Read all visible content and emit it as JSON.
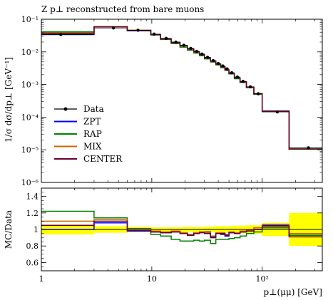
{
  "chart_data": [
    {
      "type": "line",
      "title": "Z p⊥ reconstructed from bare muons",
      "ylabel": "1/σ dσ/dp⊥ [GeV⁻¹]",
      "xscale": "log",
      "yscale": "log",
      "xlim": [
        1,
        350
      ],
      "ylim": [
        1e-06,
        0.1
      ],
      "x_ticks": [
        {
          "v": 1,
          "label": "1"
        },
        {
          "v": 10,
          "label": "10"
        },
        {
          "v": 100,
          "label": "10²"
        }
      ],
      "y_ticks": [
        {
          "v": 0.1,
          "label": "10⁻¹"
        },
        {
          "v": 0.01,
          "label": "10⁻²"
        },
        {
          "v": 0.001,
          "label": "10⁻³"
        },
        {
          "v": 0.0001,
          "label": "10⁻⁴"
        },
        {
          "v": 1e-05,
          "label": "10⁻⁵"
        },
        {
          "v": 1e-06,
          "label": "10⁻⁶"
        }
      ],
      "bin_edges": [
        1,
        3,
        6,
        9.8,
        12,
        15,
        18,
        21,
        24,
        27,
        30,
        34,
        38,
        42,
        46,
        50,
        56,
        63,
        72,
        84,
        100,
        175,
        350
      ],
      "legend_position": "left",
      "data": {
        "name": "Data",
        "color": "#000000",
        "x": [
          1.5,
          4.5,
          7.5,
          10.5,
          13.5,
          16.5,
          19.5,
          22.5,
          25.5,
          28.5,
          32,
          36,
          40,
          44,
          48,
          53,
          59.5,
          67,
          78,
          92,
          137,
          262
        ],
        "y": [
          0.034,
          0.054,
          0.046,
          0.035,
          0.026,
          0.02,
          0.016,
          0.0128,
          0.0104,
          0.0086,
          0.0068,
          0.0054,
          0.0044,
          0.0037,
          0.003,
          0.0023,
          0.0017,
          0.00125,
          0.00085,
          0.00052,
          0.000145,
          1.15e-05
        ]
      },
      "series": [
        {
          "name": "ZPT",
          "color": "#0000ff",
          "values": [
            0.034,
            0.058,
            0.044,
            0.034,
            0.025,
            0.0195,
            0.0155,
            0.0122,
            0.01,
            0.0083,
            0.0066,
            0.0052,
            0.0042,
            0.0035,
            0.0028,
            0.0022,
            0.0016,
            0.0012,
            0.00083,
            0.00052,
            0.000155,
            1.05e-05
          ]
        },
        {
          "name": "RAP",
          "color": "#008000",
          "values": [
            0.041,
            0.059,
            0.046,
            0.033,
            0.024,
            0.018,
            0.014,
            0.0112,
            0.0092,
            0.0076,
            0.0061,
            0.0049,
            0.004,
            0.0033,
            0.0027,
            0.0021,
            0.0015,
            0.00115,
            0.0008,
            0.0005,
            0.000148,
            1.08e-05
          ]
        },
        {
          "name": "MIX",
          "color": "#cc6600",
          "values": [
            0.038,
            0.06,
            0.046,
            0.034,
            0.025,
            0.0192,
            0.0152,
            0.0121,
            0.0099,
            0.0082,
            0.0065,
            0.0051,
            0.0042,
            0.0035,
            0.0028,
            0.0022,
            0.0016,
            0.00121,
            0.00083,
            0.00053,
            0.000152,
            1.05e-05
          ]
        },
        {
          "name": "CENTER",
          "color": "#660033",
          "values": [
            0.036,
            0.058,
            0.045,
            0.034,
            0.025,
            0.0194,
            0.0154,
            0.0122,
            0.01,
            0.0083,
            0.0065,
            0.0052,
            0.0042,
            0.0035,
            0.0028,
            0.0022,
            0.0016,
            0.0012,
            0.00083,
            0.00052,
            0.000153,
            1.04e-05
          ]
        }
      ]
    },
    {
      "type": "line",
      "ylabel": "MC/Data",
      "xlabel": "p⊥(μμ) [GeV]",
      "xscale": "log",
      "xlim": [
        1,
        350
      ],
      "ylim": [
        0.5,
        1.5
      ],
      "x_ticks": [
        {
          "v": 1,
          "label": "1"
        },
        {
          "v": 10,
          "label": "10"
        },
        {
          "v": 100,
          "label": "10²"
        }
      ],
      "y_ticks": [
        {
          "v": 0.6,
          "label": "0.6"
        },
        {
          "v": 0.8,
          "label": "0.8"
        },
        {
          "v": 1.0,
          "label": "1"
        },
        {
          "v": 1.2,
          "label": "1.2"
        },
        {
          "v": 1.4,
          "label": "1.4"
        }
      ],
      "reference_line": 1.0,
      "uncertainty_band": {
        "color": "#ffff00",
        "half_widths": [
          0.06,
          0.04,
          0.03,
          0.025,
          0.025,
          0.025,
          0.03,
          0.03,
          0.03,
          0.03,
          0.035,
          0.035,
          0.04,
          0.04,
          0.04,
          0.04,
          0.045,
          0.045,
          0.05,
          0.05,
          0.08,
          0.2
        ]
      },
      "series": [
        {
          "name": "ZPT",
          "color": "#0000ff",
          "values": [
            1.0,
            1.08,
            0.98,
            0.97,
            0.96,
            0.97,
            0.96,
            0.93,
            0.96,
            0.97,
            0.97,
            0.91,
            0.95,
            0.94,
            0.92,
            0.96,
            0.95,
            0.97,
            0.98,
            1.0,
            1.05,
            0.93
          ]
        },
        {
          "name": "RAP",
          "color": "#008000",
          "values": [
            1.22,
            1.14,
            1.01,
            0.94,
            0.92,
            0.88,
            0.86,
            0.86,
            0.87,
            0.86,
            0.87,
            0.83,
            0.88,
            0.88,
            0.88,
            0.89,
            0.9,
            0.92,
            0.95,
            0.97,
            1.02,
            0.93
          ]
        },
        {
          "name": "MIX",
          "color": "#cc6600",
          "values": [
            1.1,
            1.12,
            1.0,
            0.98,
            0.97,
            0.98,
            0.96,
            0.94,
            0.96,
            0.97,
            0.96,
            0.92,
            0.96,
            0.96,
            0.94,
            0.97,
            0.96,
            0.98,
            0.99,
            1.02,
            1.06,
            0.95
          ]
        },
        {
          "name": "CENTER",
          "color": "#660033",
          "values": [
            1.05,
            1.1,
            0.99,
            0.97,
            0.96,
            0.97,
            0.95,
            0.93,
            0.95,
            0.96,
            0.95,
            0.9,
            0.95,
            0.95,
            0.93,
            0.96,
            0.95,
            0.97,
            0.98,
            1.0,
            1.04,
            0.91
          ]
        }
      ]
    }
  ]
}
